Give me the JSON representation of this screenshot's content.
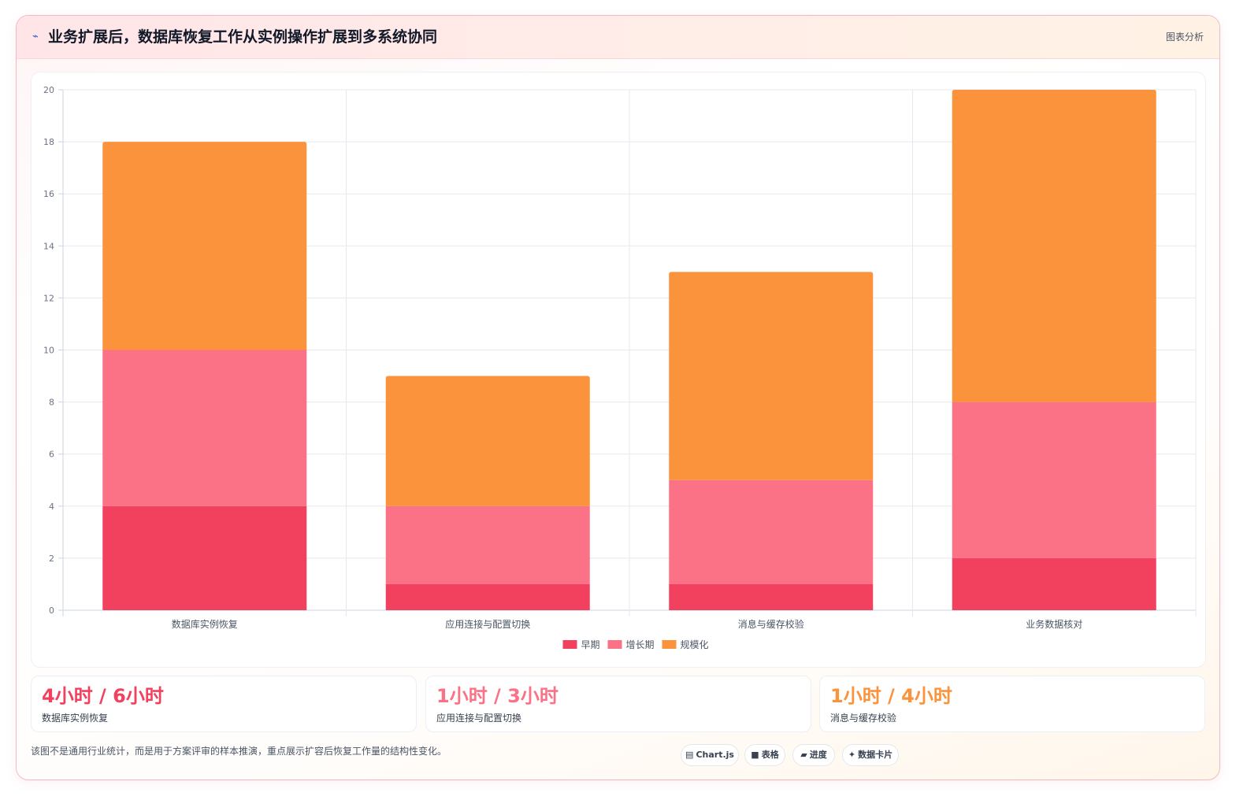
{
  "header": {
    "title": "业务扩展后，数据库恢复工作从实例操作扩展到多系统协同",
    "link": "图表分析",
    "icon": "trend-icon"
  },
  "chart_data": {
    "type": "bar",
    "stacked": true,
    "categories": [
      "数据库实例恢复",
      "应用连接与配置切换",
      "消息与缓存校验",
      "业务数据核对"
    ],
    "series": [
      {
        "name": "早期",
        "color": "#f2405f",
        "values": [
          4,
          1,
          1,
          2
        ]
      },
      {
        "name": "增长期",
        "color": "#fb7185",
        "values": [
          6,
          3,
          4,
          6
        ]
      },
      {
        "name": "规模化",
        "color": "#fb923c",
        "values": [
          8,
          5,
          8,
          12
        ]
      }
    ],
    "ylim": [
      0,
      20
    ],
    "yticks": [
      0,
      2,
      4,
      6,
      8,
      10,
      12,
      14,
      16,
      18,
      20
    ],
    "grid": true,
    "legend": "bottom"
  },
  "stats": [
    {
      "value": "4小时 / 6小时",
      "label": "数据库实例恢复",
      "color": "#f2405f"
    },
    {
      "value": "1小时 / 3小时",
      "label": "应用连接与配置切换",
      "color": "#fb7185"
    },
    {
      "value": "1小时 / 4小时",
      "label": "消息与缓存校验",
      "color": "#fb923c"
    }
  ],
  "footnote": "该图不是通用行业统计，而是用于方案评审的样本推演，重点展示扩容后恢复工作量的结构性变化。",
  "pills": [
    {
      "icon": "chart-icon",
      "glyph": "▤",
      "label": "Chart.js"
    },
    {
      "icon": "table-icon",
      "glyph": "■",
      "label": "表格"
    },
    {
      "icon": "progress-icon",
      "glyph": "▰",
      "label": "进度"
    },
    {
      "icon": "card-icon",
      "glyph": "✦",
      "label": "数据卡片"
    }
  ]
}
